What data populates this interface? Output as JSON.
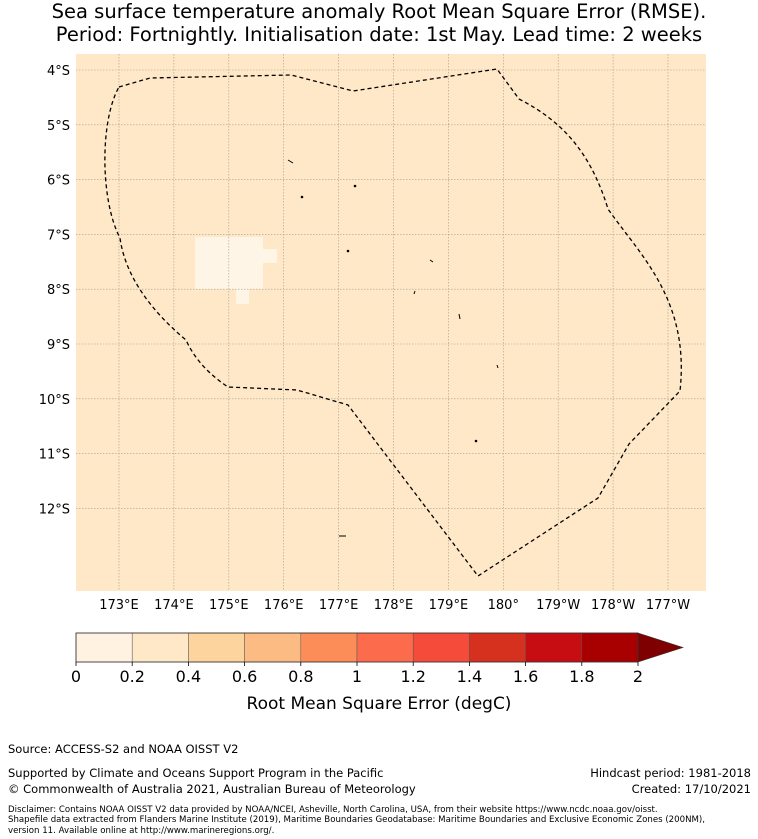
{
  "title": {
    "line1": "Sea surface temperature anomaly Root Mean Square Error (RMSE).",
    "line2": "Period: Fortnightly. Initialisation date: 1st May. Lead time: 2 weeks"
  },
  "map": {
    "ocean_color": "#fee8c8",
    "low_patch_color": "#fff5e6",
    "latitude_labels": [
      "4°S",
      "5°S",
      "6°S",
      "7°S",
      "8°S",
      "9°S",
      "10°S",
      "11°S",
      "12°S"
    ],
    "longitude_labels": [
      "173°E",
      "174°E",
      "175°E",
      "176°E",
      "177°E",
      "178°E",
      "179°E",
      "180°",
      "179°W",
      "178°W",
      "177°W"
    ],
    "eez_boundary_style": "dashed",
    "gridlines": true
  },
  "colorbar": {
    "label": "Root Mean Square Error (degC)",
    "ticks": [
      "0",
      "0.2",
      "0.4",
      "0.6",
      "0.8",
      "1",
      "1.2",
      "1.4",
      "1.6",
      "1.8",
      "2"
    ],
    "colors": [
      "#fff2e1",
      "#fee8c8",
      "#fdd49e",
      "#fdbb84",
      "#fc8d59",
      "#fc6c4c",
      "#f44b3a",
      "#d6301f",
      "#c80d12",
      "#a80000"
    ],
    "extend_color": "#7f0000"
  },
  "footer": {
    "source": "Source: ACCESS-S2 and NOAA OISST V2",
    "supported": "Supported by Climate and Oceans Support Program in the Pacific",
    "copyright": "© Commonwealth of Australia 2021, Australian Bureau of Meteorology",
    "hindcast": "Hindcast period: 1981-2018",
    "created": "Created: 17/10/2021",
    "disclaimer1": "Disclaimer: Contains NOAA OISST V2 data provided by NOAA/NCEI, Asheville, North Carolina, USA, from their website https://www.ncdc.noaa.gov/oisst.",
    "disclaimer2": "Shapefile data extracted from Flanders Marine Institute (2019), Maritime Boundaries Geodatabase: Maritime Boundaries and Exclusive Economic Zones (200NM),",
    "disclaimer3": "version 11. Available online at http://www.marineregions.org/."
  }
}
